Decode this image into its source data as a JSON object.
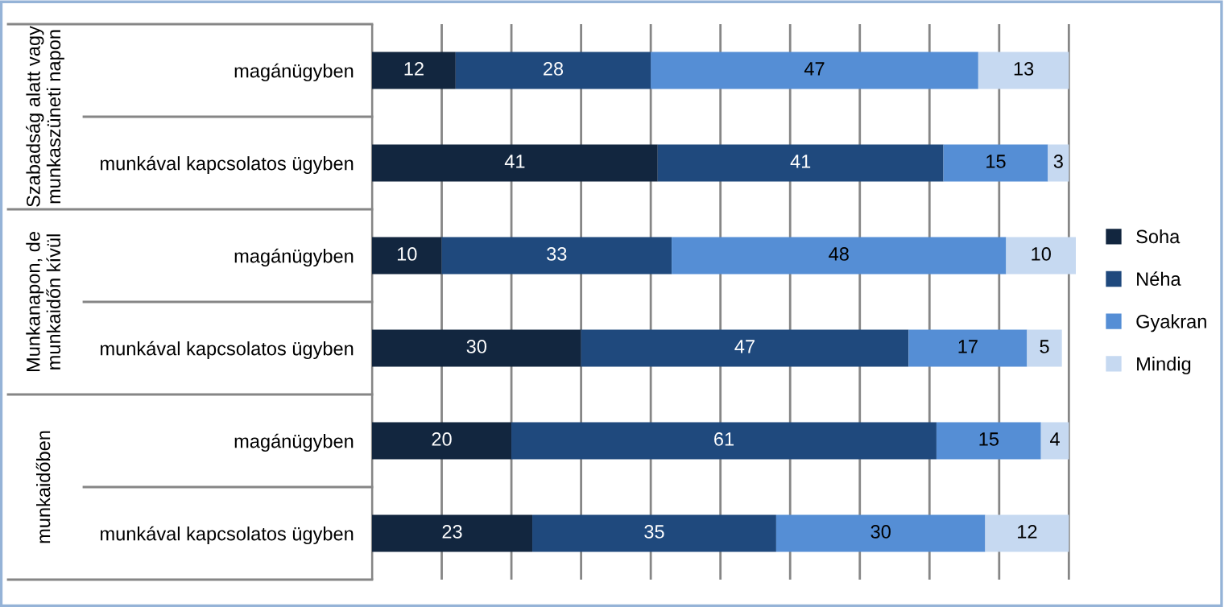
{
  "chart_data": {
    "type": "bar",
    "orientation": "horizontal",
    "stacked": true,
    "categories": [
      "magánügyben",
      "munkával kapcsolatos ügyben",
      "magánügyben",
      "munkával kapcsolatos ügyben",
      "magánügyben",
      "munkával kapcsolatos ügyben"
    ],
    "series": [
      {
        "name": "Soha",
        "color": "#12263f",
        "values": [
          12,
          41,
          10,
          30,
          20,
          23
        ]
      },
      {
        "name": "Néha",
        "color": "#1f497d",
        "values": [
          28,
          41,
          33,
          47,
          61,
          35
        ]
      },
      {
        "name": "Gyakran",
        "color": "#558ed5",
        "values": [
          47,
          15,
          48,
          17,
          15,
          30
        ]
      },
      {
        "name": "Mindig",
        "color": "#c6d9f1",
        "values": [
          13,
          3,
          10,
          5,
          4,
          12
        ]
      }
    ],
    "xlim": [
      0,
      101
    ],
    "xticks": [
      {
        "value": 0,
        "label": null
      },
      {
        "value": 10,
        "label": null
      },
      {
        "value": 20,
        "label": null
      },
      {
        "value": 30,
        "label": null
      },
      {
        "value": 40,
        "label": null
      },
      {
        "value": 50,
        "label": null
      },
      {
        "value": 60,
        "label": null
      },
      {
        "value": 70,
        "label": null
      },
      {
        "value": 80,
        "label": null
      },
      {
        "value": 90,
        "label": null
      },
      {
        "value": 100,
        "label": null
      }
    ],
    "annotations": [
      "Szabadság alatt vagy munkaszüneti napon",
      "Munkanapon, de munkaidőn kívül",
      "munkaidőben"
    ],
    "data_labels": true,
    "grid": "x",
    "legend": "right",
    "tick_labels": "y"
  }
}
